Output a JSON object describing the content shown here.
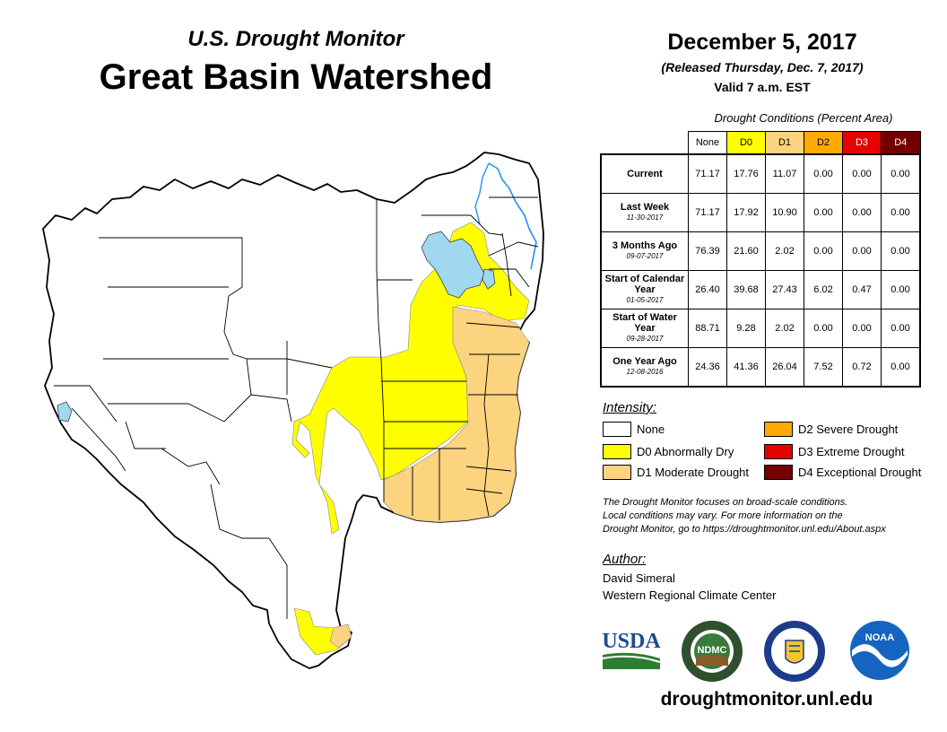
{
  "header": {
    "subtitle": "U.S. Drought Monitor",
    "title": "Great Basin Watershed",
    "date": "December 5, 2017",
    "released": "(Released Thursday, Dec. 7, 2017)",
    "valid": "Valid 7 a.m. EST"
  },
  "table": {
    "caption": "Drought Conditions (Percent Area)",
    "columns": [
      "None",
      "D0",
      "D1",
      "D2",
      "D3",
      "D4"
    ],
    "column_colors": [
      "#ffffff",
      "#ffff00",
      "#fcd37f",
      "#ffaa00",
      "#e60000",
      "#730000"
    ],
    "rows": [
      {
        "label": "Current",
        "date": "",
        "values": [
          "71.17",
          "17.76",
          "11.07",
          "0.00",
          "0.00",
          "0.00"
        ]
      },
      {
        "label": "Last Week",
        "date": "11-30-2017",
        "values": [
          "71.17",
          "17.92",
          "10.90",
          "0.00",
          "0.00",
          "0.00"
        ]
      },
      {
        "label": "3 Months Ago",
        "date": "09-07-2017",
        "values": [
          "76.39",
          "21.60",
          "2.02",
          "0.00",
          "0.00",
          "0.00"
        ]
      },
      {
        "label": "Start of Calendar Year",
        "date": "01-05-2017",
        "values": [
          "26.40",
          "39.68",
          "27.43",
          "6.02",
          "0.47",
          "0.00"
        ]
      },
      {
        "label": "Start of Water Year",
        "date": "09-28-2017",
        "values": [
          "88.71",
          "9.28",
          "2.02",
          "0.00",
          "0.00",
          "0.00"
        ]
      },
      {
        "label": "One Year Ago",
        "date": "12-08-2016",
        "values": [
          "24.36",
          "41.36",
          "26.04",
          "7.52",
          "0.72",
          "0.00"
        ]
      }
    ]
  },
  "legend": {
    "title": "Intensity:",
    "items": [
      {
        "label": "None",
        "color": "#ffffff"
      },
      {
        "label": "D0 Abnormally Dry",
        "color": "#ffff00"
      },
      {
        "label": "D1 Moderate Drought",
        "color": "#fcd37f"
      },
      {
        "label": "D2 Severe Drought",
        "color": "#ffaa00"
      },
      {
        "label": "D3 Extreme Drought",
        "color": "#e60000"
      },
      {
        "label": "D4 Exceptional Drought",
        "color": "#730000"
      }
    ]
  },
  "disclaimer": {
    "line1": "The Drought Monitor focuses on broad-scale conditions.",
    "line2": "Local conditions may vary. For more information on the",
    "line3": "Drought Monitor, go to https://droughtmonitor.unl.edu/About.aspx"
  },
  "author": {
    "title": "Author:",
    "name": "David Simeral",
    "org": "Western Regional Climate Center"
  },
  "logos": {
    "usda": "USDA",
    "ndmc": "NDMC",
    "noaa": "NOAA"
  },
  "footer": {
    "url": "droughtmonitor.unl.edu"
  },
  "map_colors": {
    "d0": "#ffff00",
    "d1": "#fcd37f",
    "water": "#9fd8ef",
    "river": "#1e90ff"
  }
}
